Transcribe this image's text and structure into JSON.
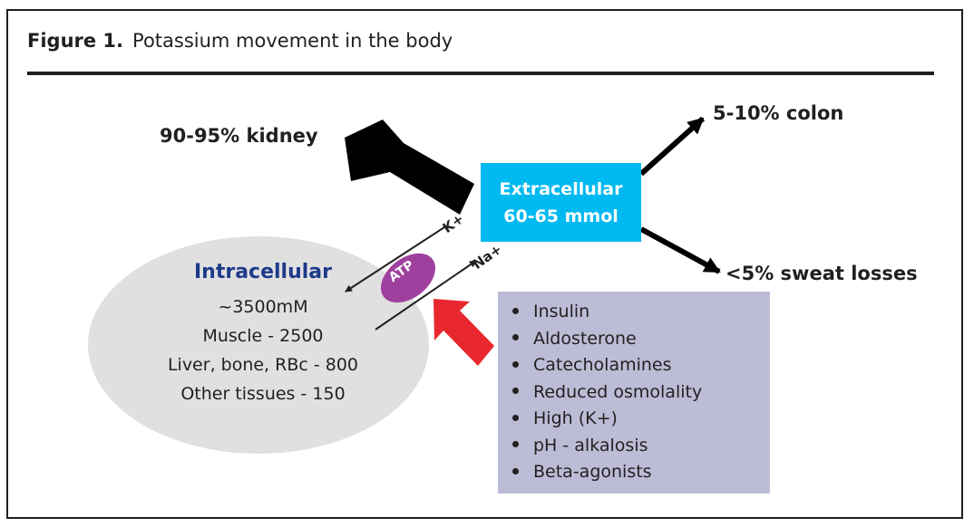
{
  "figure": {
    "label": "Figure 1.",
    "title": "Potassium movement in the body"
  },
  "outputs": {
    "kidney": "90-95% kidney",
    "colon": "5-10% colon",
    "sweat": "<5% sweat losses"
  },
  "extracellular": {
    "name": "Extracellular",
    "amount": "60-65 mmol"
  },
  "intracellular": {
    "name": "Intracellular",
    "lines": [
      "~3500mM",
      "Muscle - 2500",
      "Liver, bone, RBc - 800",
      "Other tissues - 150"
    ]
  },
  "pump": {
    "k_ion": "K+",
    "na_ion": "Na+",
    "atp": "ATP"
  },
  "regulators": [
    "Insulin",
    "Aldosterone",
    "Catecholamines",
    "Reduced osmolality",
    "High (K+)",
    "pH - alkalosis",
    "Beta-agonists"
  ],
  "colors": {
    "extracellular_box": "#00b9f0",
    "intracellular_fill": "#e0e0e0",
    "intracellular_title": "#1f3a8a",
    "atp": "#a0409e",
    "stimulus_arrow": "#e8282e",
    "regulator_box": "#bcbcd6"
  }
}
